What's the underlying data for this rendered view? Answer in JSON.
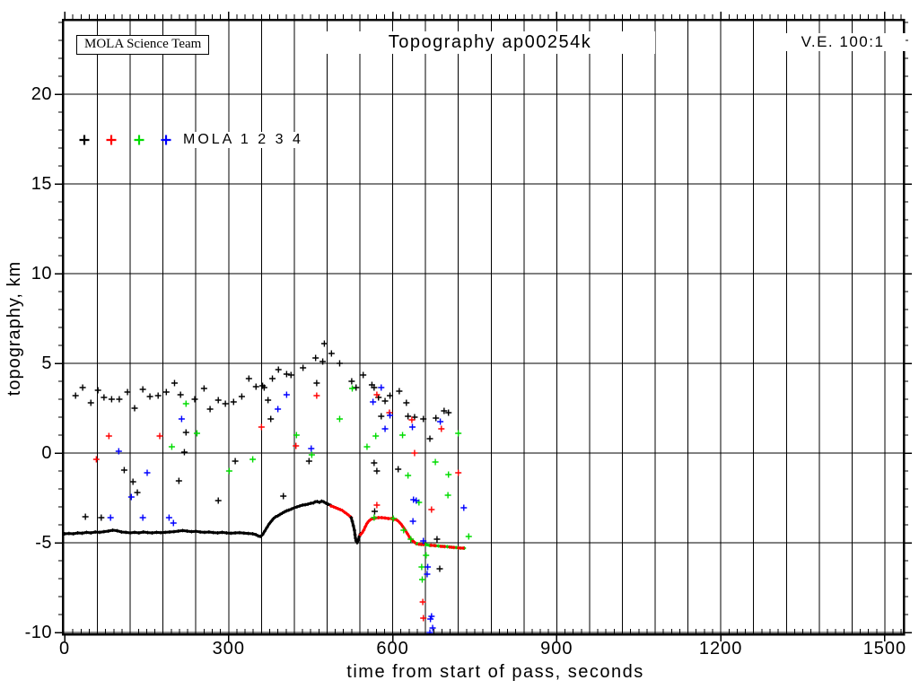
{
  "chart_data": {
    "type": "scatter",
    "title": "Topography ap00254k",
    "stamp": "MOLA Science Team",
    "ve": "V.E. 100:1",
    "xlabel": "time from start of pass, seconds",
    "ylabel": "topography, km",
    "xlim": [
      0,
      1535
    ],
    "ylim": [
      -10.1,
      24.15
    ],
    "x_tick_labels": [
      0,
      300,
      600,
      900,
      1200,
      1500
    ],
    "y_tick_labels": [
      -10,
      -5,
      0,
      5,
      10,
      15,
      20
    ],
    "x_grid_step": 60,
    "x_minor_step": 15,
    "y_grid_step": 5,
    "y_minor_step": 1,
    "grid": "on",
    "legend": {
      "text": "MOLA 1 2 3 4",
      "marker_colors": [
        "#000000",
        "#ff0000",
        "#00dc00",
        "#0000ff"
      ]
    },
    "series": [
      {
        "name": "MOLA 1",
        "color": "#000000",
        "marker": "+",
        "points": [
          [
            20,
            3.2
          ],
          [
            33,
            3.65
          ],
          [
            48,
            2.8
          ],
          [
            61,
            3.5
          ],
          [
            72,
            3.1
          ],
          [
            86,
            3.0
          ],
          [
            100,
            3.0
          ],
          [
            115,
            3.4
          ],
          [
            128,
            2.5
          ],
          [
            143,
            3.55
          ],
          [
            156,
            3.15
          ],
          [
            171,
            3.2
          ],
          [
            186,
            3.4
          ],
          [
            201,
            3.9
          ],
          [
            212,
            3.25
          ],
          [
            222,
            1.15
          ],
          [
            238,
            3.0
          ],
          [
            255,
            3.6
          ],
          [
            266,
            2.45
          ],
          [
            281,
            2.95
          ],
          [
            294,
            2.75
          ],
          [
            309,
            2.85
          ],
          [
            324,
            3.15
          ],
          [
            337,
            4.15
          ],
          [
            350,
            3.7
          ],
          [
            362,
            3.75
          ],
          [
            365,
            3.65
          ],
          [
            372,
            2.95
          ],
          [
            377,
            1.9
          ],
          [
            380,
            4.15
          ],
          [
            391,
            4.65
          ],
          [
            406,
            4.4
          ],
          [
            414,
            4.35
          ],
          [
            436,
            4.75
          ],
          [
            459,
            5.3
          ],
          [
            461,
            3.9
          ],
          [
            472,
            5.1
          ],
          [
            475,
            6.1
          ],
          [
            488,
            5.55
          ],
          [
            503,
            5.0
          ],
          [
            525,
            4.0
          ],
          [
            533,
            3.65
          ],
          [
            546,
            4.35
          ],
          [
            562,
            3.8
          ],
          [
            566,
            3.65
          ],
          [
            574,
            3.1
          ],
          [
            579,
            2.05
          ],
          [
            586,
            2.9
          ],
          [
            595,
            3.2
          ],
          [
            612,
            3.45
          ],
          [
            625,
            2.8
          ],
          [
            628,
            2.05
          ],
          [
            640,
            2.0
          ],
          [
            656,
            1.9
          ],
          [
            668,
            0.8
          ],
          [
            679,
            1.95
          ],
          [
            694,
            2.35
          ],
          [
            702,
            2.25
          ],
          [
            38,
            -3.55
          ],
          [
            67,
            -3.6
          ],
          [
            109,
            -0.95
          ],
          [
            125,
            -1.6
          ],
          [
            133,
            -2.2
          ],
          [
            209,
            -1.55
          ],
          [
            219,
            0.05
          ],
          [
            281,
            -2.65
          ],
          [
            312,
            -0.45
          ],
          [
            400,
            -2.4
          ],
          [
            447,
            -0.45
          ],
          [
            567,
            -3.25
          ],
          [
            566,
            -0.55
          ],
          [
            571,
            -1.0
          ],
          [
            610,
            -0.9
          ],
          [
            681,
            -4.8
          ],
          [
            686,
            -6.45
          ]
        ]
      },
      {
        "name": "MOLA 2",
        "color": "#ff0000",
        "marker": "+",
        "points": [
          [
            58,
            -0.35
          ],
          [
            81,
            0.95
          ],
          [
            174,
            0.95
          ],
          [
            360,
            1.45
          ],
          [
            423,
            0.4
          ],
          [
            461,
            3.2
          ],
          [
            571,
            3.25
          ],
          [
            571,
            -2.9
          ],
          [
            594,
            2.25
          ],
          [
            635,
            1.85
          ],
          [
            640,
            0.0
          ],
          [
            671,
            -3.15
          ],
          [
            689,
            1.35
          ],
          [
            720,
            -1.1
          ],
          [
            655,
            -8.3
          ],
          [
            656,
            -9.2
          ]
        ]
      },
      {
        "name": "MOLA 3",
        "color": "#00dc00",
        "marker": "+",
        "points": [
          [
            196,
            0.35
          ],
          [
            222,
            2.75
          ],
          [
            242,
            1.1
          ],
          [
            301,
            -1.0
          ],
          [
            344,
            -0.35
          ],
          [
            424,
            1.0
          ],
          [
            452,
            -0.1
          ],
          [
            503,
            1.9
          ],
          [
            526,
            3.6
          ],
          [
            553,
            0.35
          ],
          [
            566,
            -3.6
          ],
          [
            569,
            0.95
          ],
          [
            601,
            -3.65
          ],
          [
            618,
            1.0
          ],
          [
            620,
            -4.3
          ],
          [
            628,
            -1.25
          ],
          [
            633,
            -4.8
          ],
          [
            648,
            -2.75
          ],
          [
            678,
            -0.5
          ],
          [
            701,
            -2.35
          ],
          [
            702,
            -1.2
          ],
          [
            720,
            1.1
          ],
          [
            653,
            -6.35
          ],
          [
            654,
            -7.05
          ],
          [
            661,
            -5.7
          ],
          [
            739,
            -4.65
          ]
        ]
      },
      {
        "name": "MOLA 4",
        "color": "#0000ff",
        "marker": "+",
        "points": [
          [
            84,
            -3.6
          ],
          [
            99,
            0.1
          ],
          [
            122,
            -2.45
          ],
          [
            143,
            -3.6
          ],
          [
            151,
            -1.1
          ],
          [
            191,
            -3.6
          ],
          [
            199,
            -3.9
          ],
          [
            214,
            1.9
          ],
          [
            390,
            2.45
          ],
          [
            406,
            3.25
          ],
          [
            451,
            0.25
          ],
          [
            564,
            2.85
          ],
          [
            579,
            3.65
          ],
          [
            586,
            1.35
          ],
          [
            595,
            2.1
          ],
          [
            636,
            1.45
          ],
          [
            637,
            -3.8
          ],
          [
            638,
            -2.6
          ],
          [
            643,
            -2.65
          ],
          [
            656,
            -4.9
          ],
          [
            687,
            1.75
          ],
          [
            730,
            -3.05
          ],
          [
            663,
            -6.75
          ],
          [
            664,
            -6.35
          ],
          [
            669,
            -9.25
          ],
          [
            671,
            -9.1
          ],
          [
            673,
            -9.75
          ],
          [
            668,
            -10.0
          ]
        ]
      }
    ],
    "profile_segments": [
      {
        "series": "MOLA 1",
        "color": "#000000",
        "points": [
          [
            0,
            -4.5
          ],
          [
            8,
            -4.48
          ],
          [
            16,
            -4.5
          ],
          [
            24,
            -4.45
          ],
          [
            32,
            -4.47
          ],
          [
            40,
            -4.42
          ],
          [
            48,
            -4.45
          ],
          [
            56,
            -4.4
          ],
          [
            64,
            -4.42
          ],
          [
            72,
            -4.38
          ],
          [
            80,
            -4.35
          ],
          [
            88,
            -4.3
          ],
          [
            96,
            -4.33
          ],
          [
            104,
            -4.4
          ],
          [
            112,
            -4.42
          ],
          [
            120,
            -4.45
          ],
          [
            128,
            -4.42
          ],
          [
            136,
            -4.45
          ],
          [
            144,
            -4.4
          ],
          [
            152,
            -4.43
          ],
          [
            160,
            -4.45
          ],
          [
            168,
            -4.42
          ],
          [
            176,
            -4.44
          ],
          [
            184,
            -4.42
          ],
          [
            192,
            -4.4
          ],
          [
            200,
            -4.38
          ],
          [
            208,
            -4.35
          ],
          [
            216,
            -4.32
          ],
          [
            224,
            -4.35
          ],
          [
            232,
            -4.38
          ],
          [
            240,
            -4.36
          ],
          [
            248,
            -4.4
          ],
          [
            256,
            -4.42
          ],
          [
            264,
            -4.4
          ],
          [
            272,
            -4.43
          ],
          [
            280,
            -4.45
          ],
          [
            288,
            -4.42
          ],
          [
            296,
            -4.45
          ],
          [
            304,
            -4.47
          ],
          [
            312,
            -4.45
          ],
          [
            320,
            -4.44
          ],
          [
            328,
            -4.46
          ],
          [
            336,
            -4.48
          ],
          [
            344,
            -4.5
          ],
          [
            350,
            -4.55
          ],
          [
            354,
            -4.62
          ],
          [
            358,
            -4.65
          ],
          [
            362,
            -4.55
          ],
          [
            366,
            -4.35
          ],
          [
            370,
            -4.15
          ],
          [
            374,
            -3.95
          ],
          [
            378,
            -3.8
          ],
          [
            382,
            -3.65
          ],
          [
            386,
            -3.55
          ],
          [
            390,
            -3.5
          ],
          [
            394,
            -3.42
          ],
          [
            398,
            -3.35
          ],
          [
            402,
            -3.28
          ],
          [
            406,
            -3.22
          ],
          [
            410,
            -3.18
          ],
          [
            415,
            -3.12
          ],
          [
            420,
            -3.05
          ],
          [
            425,
            -3.0
          ],
          [
            430,
            -2.95
          ],
          [
            435,
            -2.9
          ],
          [
            440,
            -2.88
          ],
          [
            445,
            -2.85
          ],
          [
            450,
            -2.8
          ],
          [
            455,
            -2.78
          ],
          [
            458,
            -2.72
          ],
          [
            462,
            -2.7
          ],
          [
            466,
            -2.75
          ],
          [
            470,
            -2.68
          ],
          [
            474,
            -2.72
          ],
          [
            478,
            -2.8
          ],
          [
            482,
            -2.85
          ],
          [
            487,
            -2.92
          ]
        ]
      },
      {
        "series": "MOLA 2",
        "color": "#ff0000",
        "points": [
          [
            487,
            -2.95
          ],
          [
            492,
            -3.0
          ],
          [
            496,
            -3.05
          ],
          [
            500,
            -3.1
          ],
          [
            504,
            -3.15
          ],
          [
            508,
            -3.2
          ],
          [
            512,
            -3.3
          ],
          [
            516,
            -3.38
          ],
          [
            520,
            -3.48
          ],
          [
            524,
            -3.58
          ]
        ]
      },
      {
        "series": "MOLA 1",
        "color": "#000000",
        "points": [
          [
            524,
            -3.6
          ],
          [
            526,
            -3.8
          ],
          [
            528,
            -4.05
          ],
          [
            530,
            -4.3
          ],
          [
            531,
            -4.55
          ],
          [
            532,
            -4.75
          ],
          [
            533,
            -4.9
          ],
          [
            535,
            -5.0
          ],
          [
            537,
            -4.85
          ],
          [
            539,
            -4.65
          ],
          [
            541,
            -4.5
          ]
        ]
      },
      {
        "series": "MOLA 2",
        "color": "#ff0000",
        "points": [
          [
            541,
            -4.55
          ],
          [
            544,
            -4.45
          ],
          [
            547,
            -4.3
          ],
          [
            550,
            -4.1
          ],
          [
            553,
            -3.92
          ],
          [
            556,
            -3.8
          ],
          [
            559,
            -3.72
          ],
          [
            563,
            -3.65
          ],
          [
            568,
            -3.62
          ],
          [
            574,
            -3.6
          ],
          [
            580,
            -3.6
          ],
          [
            586,
            -3.62
          ],
          [
            592,
            -3.65
          ],
          [
            598,
            -3.65
          ],
          [
            603,
            -3.68
          ],
          [
            607,
            -3.72
          ],
          [
            611,
            -3.82
          ],
          [
            615,
            -3.95
          ],
          [
            619,
            -4.12
          ],
          [
            623,
            -4.3
          ],
          [
            627,
            -4.5
          ],
          [
            631,
            -4.7
          ],
          [
            635,
            -4.85
          ],
          [
            639,
            -4.95
          ],
          [
            643,
            -5.05
          ]
        ]
      },
      {
        "series": "MOLA 3",
        "color": "#00dc00",
        "points": [
          [
            645,
            -5.05
          ],
          [
            652,
            -5.1
          ],
          [
            660,
            -5.1
          ],
          [
            668,
            -5.15
          ],
          [
            676,
            -5.15
          ],
          [
            684,
            -5.18
          ],
          [
            692,
            -5.2
          ],
          [
            700,
            -5.22
          ],
          [
            708,
            -5.25
          ],
          [
            716,
            -5.27
          ],
          [
            724,
            -5.3
          ],
          [
            731,
            -5.3
          ]
        ]
      },
      {
        "series": "MOLA 2",
        "color": "#ff0000",
        "points": [
          [
            648,
            -5.08
          ],
          [
            656,
            -5.1
          ]
        ]
      },
      {
        "series": "MOLA 2",
        "color": "#ff0000",
        "points": [
          [
            670,
            -5.14
          ],
          [
            678,
            -5.16
          ]
        ]
      },
      {
        "series": "MOLA 2",
        "color": "#ff0000",
        "points": [
          [
            688,
            -5.2
          ],
          [
            695,
            -5.21
          ]
        ]
      },
      {
        "series": "MOLA 2",
        "color": "#ff0000",
        "points": [
          [
            704,
            -5.24
          ],
          [
            712,
            -5.26
          ]
        ]
      },
      {
        "series": "MOLA 2",
        "color": "#ff0000",
        "points": [
          [
            720,
            -5.29
          ],
          [
            729,
            -5.3
          ]
        ]
      }
    ]
  }
}
